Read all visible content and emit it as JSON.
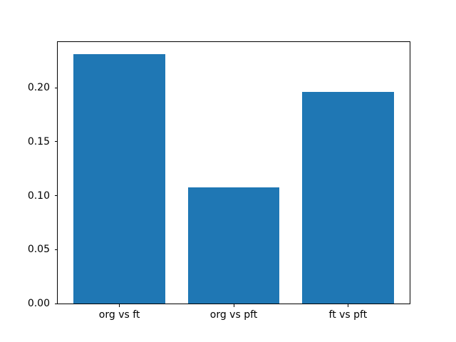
{
  "figure": {
    "background": "#ffffff"
  },
  "chart_data": {
    "type": "bar",
    "title": "",
    "xlabel": "",
    "ylabel": "",
    "categories": [
      "org vs ft",
      "org vs pft",
      "ft vs pft"
    ],
    "values": [
      0.231,
      0.108,
      0.196
    ],
    "yticks": [
      0.0,
      0.05,
      0.1,
      0.15,
      0.2
    ],
    "ytick_labels": [
      "0.00",
      "0.05",
      "0.10",
      "0.15",
      "0.20"
    ],
    "ylim": [
      0,
      0.2426
    ],
    "xlim": [
      -0.54,
      2.54
    ],
    "bar_width": 0.8,
    "bar_color": "#1f77b4",
    "spine_color": "#000000",
    "tick_color": "#000000",
    "grid": false,
    "legend": "none"
  }
}
